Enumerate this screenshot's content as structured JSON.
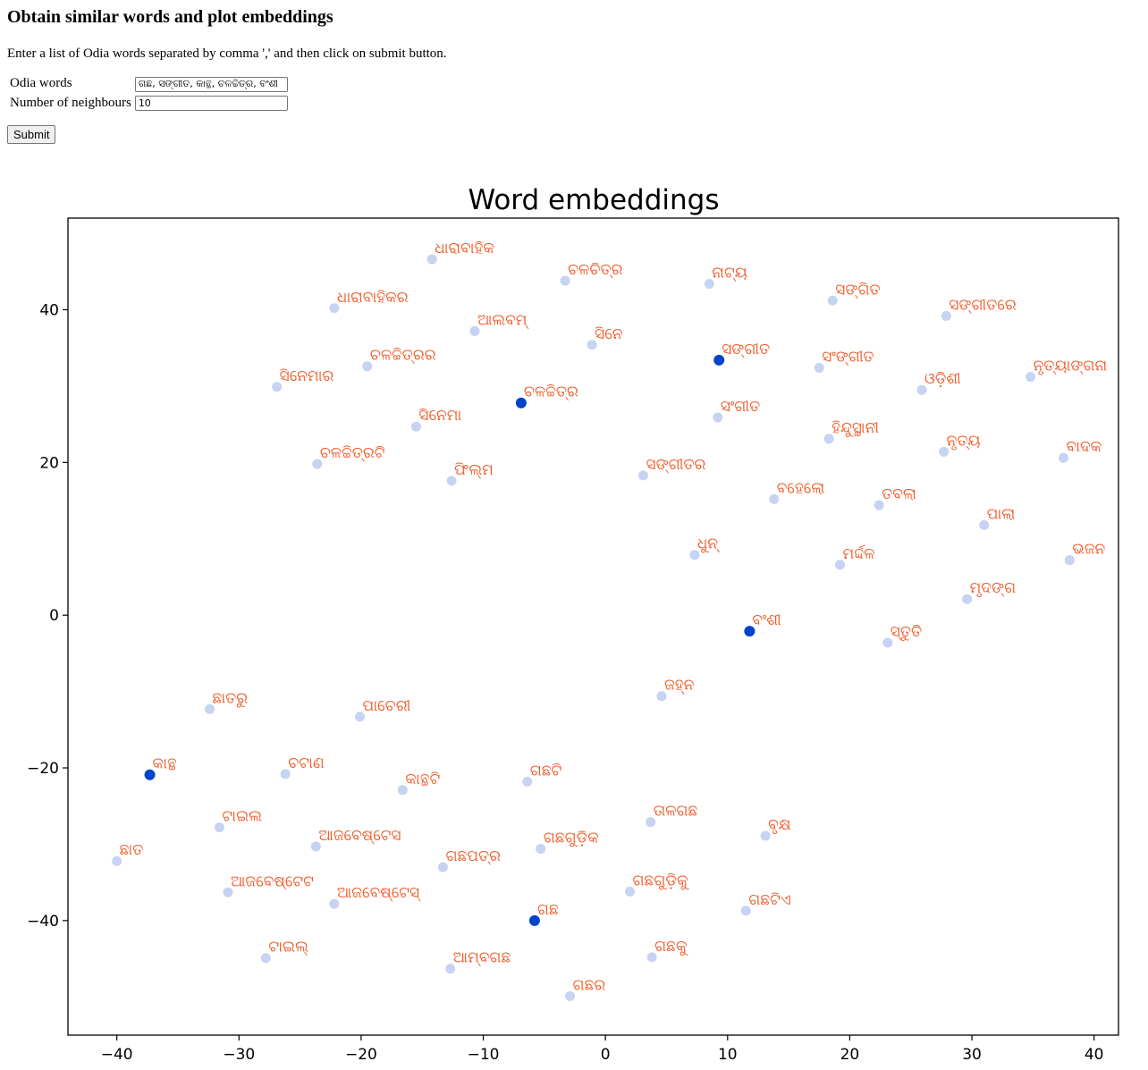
{
  "heading": "Obtain similar words and plot embeddings",
  "instructions": "Enter a list of Odia words separated by comma ',' and then click on submit button.",
  "form": {
    "words_label": "Odia words",
    "words_value": "ଗଛ, ସଙ୍ଗୀତ, କାନ୍ଥ, ଚଳଚ୍ଚିତ୍ର, ବଂଶୀ",
    "neighbours_label": "Number of neighbours",
    "neighbours_value": "10",
    "submit_label": "Submit"
  },
  "colors": {
    "query_point": "#0044cc",
    "neighbour_point": "#c6d3f2",
    "label": "#f05a28"
  },
  "chart_data": {
    "type": "scatter",
    "title": "Word embeddings",
    "xlabel": "",
    "ylabel": "",
    "xlim": [
      -44,
      42
    ],
    "ylim": [
      -55,
      52
    ],
    "xticks": [
      -40,
      -30,
      -20,
      -10,
      0,
      10,
      20,
      30,
      40
    ],
    "yticks": [
      -40,
      -20,
      0,
      20,
      40
    ],
    "grid": false,
    "points": [
      {
        "word": "ଧାରାବାହିକ",
        "x": -14.2,
        "y": 46.6,
        "query": false
      },
      {
        "word": "ଚଳଚିତ୍ର",
        "x": -3.3,
        "y": 43.8,
        "query": false
      },
      {
        "word": "ନାଟ୍ୟ",
        "x": 8.5,
        "y": 43.4,
        "query": false
      },
      {
        "word": "ସଙ୍ଗିତ",
        "x": 18.6,
        "y": 41.2,
        "query": false
      },
      {
        "word": "ସଙ୍ଗୀତରେ",
        "x": 27.9,
        "y": 39.2,
        "query": false
      },
      {
        "word": "ଧାରାବାହିକର",
        "x": -22.2,
        "y": 40.2,
        "query": false
      },
      {
        "word": "ଆଲବମ୍",
        "x": -10.7,
        "y": 37.2,
        "query": false
      },
      {
        "word": "ସିନେ",
        "x": -1.1,
        "y": 35.4,
        "query": false
      },
      {
        "word": "ସଙ୍ଗୀତ",
        "x": 9.3,
        "y": 33.4,
        "query": true
      },
      {
        "word": "ସଂଙ୍ଗୀତ",
        "x": 17.5,
        "y": 32.4,
        "query": false
      },
      {
        "word": "ଚଳଚ୍ଚିତ୍ରର",
        "x": -19.5,
        "y": 32.6,
        "query": false
      },
      {
        "word": "ସିନେମାର",
        "x": -26.9,
        "y": 29.9,
        "query": false
      },
      {
        "word": "ଓଡ଼ିଶୀ",
        "x": 25.9,
        "y": 29.5,
        "query": false
      },
      {
        "word": "ନୃତ୍ୟାଙ୍ଗନା",
        "x": 34.8,
        "y": 31.2,
        "query": false
      },
      {
        "word": "ଚଳଚ୍ଚିତ୍ର",
        "x": -6.9,
        "y": 27.8,
        "query": true
      },
      {
        "word": "ସଂଗୀତ",
        "x": 9.2,
        "y": 25.9,
        "query": false
      },
      {
        "word": "ସିନେମା",
        "x": -15.5,
        "y": 24.7,
        "query": false
      },
      {
        "word": "ହିନ୍ଦୁସ୍ଥାନୀ",
        "x": 18.3,
        "y": 23.1,
        "query": false
      },
      {
        "word": "ନୃତ୍ୟ",
        "x": 27.7,
        "y": 21.4,
        "query": false
      },
      {
        "word": "ବାଦକ",
        "x": 37.5,
        "y": 20.6,
        "query": false
      },
      {
        "word": "ଚଳଚ୍ଚିତ୍ରଟି",
        "x": -23.6,
        "y": 19.8,
        "query": false
      },
      {
        "word": "ଫିଲ୍ମ",
        "x": -12.6,
        "y": 17.6,
        "query": false
      },
      {
        "word": "ସଙ୍ଗୀତର",
        "x": 3.1,
        "y": 18.3,
        "query": false
      },
      {
        "word": "ବହେଲୋ",
        "x": 13.8,
        "y": 15.2,
        "query": false
      },
      {
        "word": "ତବଲା",
        "x": 22.4,
        "y": 14.4,
        "query": false
      },
      {
        "word": "ପାଲା",
        "x": 31.0,
        "y": 11.8,
        "query": false
      },
      {
        "word": "ଧୁନ୍",
        "x": 7.3,
        "y": 7.9,
        "query": false
      },
      {
        "word": "ମର୍ଦ୍ଦଳ",
        "x": 19.2,
        "y": 6.6,
        "query": false
      },
      {
        "word": "ଭଜନ",
        "x": 38.0,
        "y": 7.2,
        "query": false
      },
      {
        "word": "ମୃଦଙ୍ଗ",
        "x": 29.6,
        "y": 2.1,
        "query": false
      },
      {
        "word": "ବଂଶୀ",
        "x": 11.8,
        "y": -2.1,
        "query": true
      },
      {
        "word": "ସ୍ତୁତି",
        "x": 23.1,
        "y": -3.6,
        "query": false
      },
      {
        "word": "ଜହ୍ନ",
        "x": 4.6,
        "y": -10.6,
        "query": false
      },
      {
        "word": "ଛାତରୁ",
        "x": -32.4,
        "y": -12.3,
        "query": false
      },
      {
        "word": "ପାଚେରୀ",
        "x": -20.1,
        "y": -13.3,
        "query": false
      },
      {
        "word": "କାନ୍ଥ",
        "x": -37.3,
        "y": -20.9,
        "query": true
      },
      {
        "word": "ଚଟାଣ",
        "x": -26.2,
        "y": -20.8,
        "query": false
      },
      {
        "word": "କାନ୍ଥଟି",
        "x": -16.6,
        "y": -22.9,
        "query": false
      },
      {
        "word": "ଗଛଟି",
        "x": -6.4,
        "y": -21.8,
        "query": false
      },
      {
        "word": "ଟାଇଲ",
        "x": -31.6,
        "y": -27.8,
        "query": false
      },
      {
        "word": "ତାଳଗଛ",
        "x": 3.7,
        "y": -27.1,
        "query": false
      },
      {
        "word": "ବୃକ୍ଷ",
        "x": 13.1,
        "y": -28.9,
        "query": false
      },
      {
        "word": "ଆଜବେଷ୍ଟେସ",
        "x": -23.7,
        "y": -30.3,
        "query": false
      },
      {
        "word": "ଗଛଗୁଡ଼ିକ",
        "x": -5.3,
        "y": -30.6,
        "query": false
      },
      {
        "word": "ଛାତ",
        "x": -40.0,
        "y": -32.2,
        "query": false
      },
      {
        "word": "ଗଛପତ୍ର",
        "x": -13.3,
        "y": -33.0,
        "query": false
      },
      {
        "word": "ଆଜବେଷ୍ଟେଟ",
        "x": -30.9,
        "y": -36.3,
        "query": false
      },
      {
        "word": "ଗଛଗୁଡ଼ିକୁ",
        "x": 2.0,
        "y": -36.2,
        "query": false
      },
      {
        "word": "ଆଜବେଷ୍ଟେସ୍",
        "x": -22.2,
        "y": -37.8,
        "query": false
      },
      {
        "word": "ଗଛଟିଏ",
        "x": 11.5,
        "y": -38.7,
        "query": false
      },
      {
        "word": "ଗଛ",
        "x": -5.8,
        "y": -40.0,
        "query": true
      },
      {
        "word": "ଟାଇଲ୍",
        "x": -27.8,
        "y": -44.9,
        "query": false
      },
      {
        "word": "ଗଛକୁ",
        "x": 3.8,
        "y": -44.8,
        "query": false
      },
      {
        "word": "ଆମ୍ବଗଛ",
        "x": -12.7,
        "y": -46.3,
        "query": false
      },
      {
        "word": "ଗଛର",
        "x": -2.9,
        "y": -49.9,
        "query": false
      }
    ]
  }
}
